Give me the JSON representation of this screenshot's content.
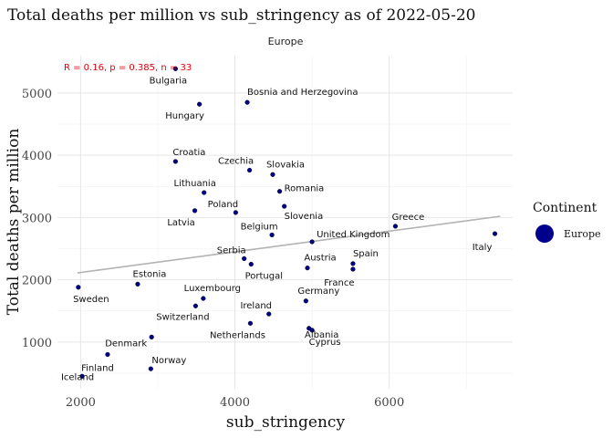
{
  "chart_data": {
    "type": "scatter",
    "title": "Total deaths per million vs sub_stringency as of 2022-05-20",
    "facet": "Europe",
    "xlabel": "sub_stringency",
    "ylabel": "Total deaths per million",
    "xlim": [
      1700,
      7600
    ],
    "ylim": [
      250,
      5600
    ],
    "x_ticks": [
      2000,
      4000,
      6000
    ],
    "x_tick_labels": [
      "2000",
      "4000",
      "6000"
    ],
    "y_ticks": [
      1000,
      2000,
      3000,
      4000,
      5000
    ],
    "y_tick_labels": [
      "1000",
      "2000",
      "3000",
      "4000",
      "5000"
    ],
    "grid": true,
    "stat_annotation": "R = 0.16, p = 0.385, n = 33",
    "trend_line": {
      "x": [
        1960,
        7440
      ],
      "y": [
        2110,
        3020
      ]
    },
    "point_color": "#00008b",
    "trend_color": "#b3b3b3",
    "legend": {
      "title": "Continent",
      "items": [
        "Europe"
      ],
      "position": "right"
    },
    "points": [
      {
        "label": "Bulgaria",
        "x": 3230,
        "y": 5390
      },
      {
        "label": "Bosnia and Herzegovina",
        "x": 4160,
        "y": 4850
      },
      {
        "label": "Hungary",
        "x": 3540,
        "y": 4820
      },
      {
        "label": "Croatia",
        "x": 3230,
        "y": 3900
      },
      {
        "label": "Czechia",
        "x": 4190,
        "y": 3760
      },
      {
        "label": "Slovakia",
        "x": 4490,
        "y": 3690
      },
      {
        "label": "Lithuania",
        "x": 3600,
        "y": 3400
      },
      {
        "label": "Romania",
        "x": 4580,
        "y": 3420
      },
      {
        "label": "Poland",
        "x": 4010,
        "y": 3080
      },
      {
        "label": "Latvia",
        "x": 3480,
        "y": 3110
      },
      {
        "label": "Slovenia",
        "x": 4640,
        "y": 3180
      },
      {
        "label": "Belgium",
        "x": 4480,
        "y": 2720
      },
      {
        "label": "Greece",
        "x": 6080,
        "y": 2860
      },
      {
        "label": "United Kingdom",
        "x": 5000,
        "y": 2610
      },
      {
        "label": "Italy",
        "x": 7370,
        "y": 2740
      },
      {
        "label": "Serbia",
        "x": 4120,
        "y": 2340
      },
      {
        "label": "Portugal",
        "x": 4210,
        "y": 2250
      },
      {
        "label": "Austria",
        "x": 4940,
        "y": 2190
      },
      {
        "label": "Spain",
        "x": 5530,
        "y": 2260
      },
      {
        "label": "France",
        "x": 5530,
        "y": 2170
      },
      {
        "label": "Estonia",
        "x": 2740,
        "y": 1930
      },
      {
        "label": "Sweden",
        "x": 1970,
        "y": 1880
      },
      {
        "label": "Luxembourg",
        "x": 3590,
        "y": 1700
      },
      {
        "label": "Switzerland",
        "x": 3490,
        "y": 1580
      },
      {
        "label": "Germany",
        "x": 4920,
        "y": 1660
      },
      {
        "label": "Ireland",
        "x": 4440,
        "y": 1450
      },
      {
        "label": "Albania",
        "x": 4960,
        "y": 1220
      },
      {
        "label": "Netherlands",
        "x": 4200,
        "y": 1300
      },
      {
        "label": "Cyprus",
        "x": 5000,
        "y": 1190
      },
      {
        "label": "Denmark",
        "x": 2920,
        "y": 1080
      },
      {
        "label": "Finland",
        "x": 2350,
        "y": 800
      },
      {
        "label": "Norway",
        "x": 2910,
        "y": 570
      },
      {
        "label": "Iceland",
        "x": 2020,
        "y": 450
      }
    ]
  }
}
